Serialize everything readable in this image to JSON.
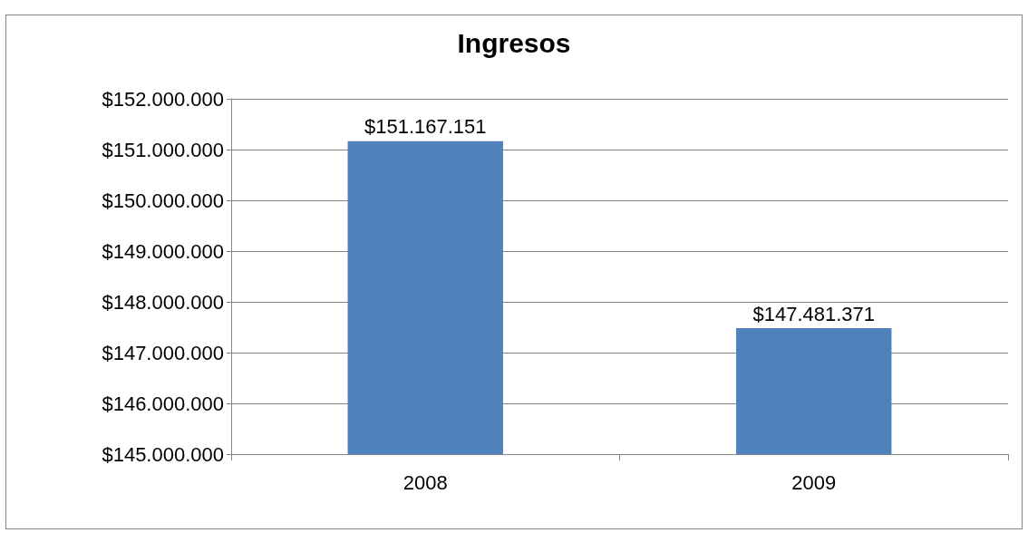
{
  "chart_data": {
    "type": "bar",
    "title": "Ingresos",
    "categories": [
      "2008",
      "2009"
    ],
    "values": [
      151167151,
      147481371
    ],
    "color": "#4f81bd",
    "value_labels": [
      "$151.167.151",
      "$147.481.371"
    ],
    "ylim": [
      145000000,
      152000000
    ],
    "yticks": [
      {
        "value": 145000000,
        "label": "$145.000.000"
      },
      {
        "value": 146000000,
        "label": "$146.000.000"
      },
      {
        "value": 147000000,
        "label": "$147.000.000"
      },
      {
        "value": 148000000,
        "label": "$148.000.000"
      },
      {
        "value": 149000000,
        "label": "$149.000.000"
      },
      {
        "value": 150000000,
        "label": "$150.000.000"
      },
      {
        "value": 151000000,
        "label": "$151.000.000"
      },
      {
        "value": 152000000,
        "label": "$152.000.000"
      }
    ],
    "grid": "y"
  }
}
